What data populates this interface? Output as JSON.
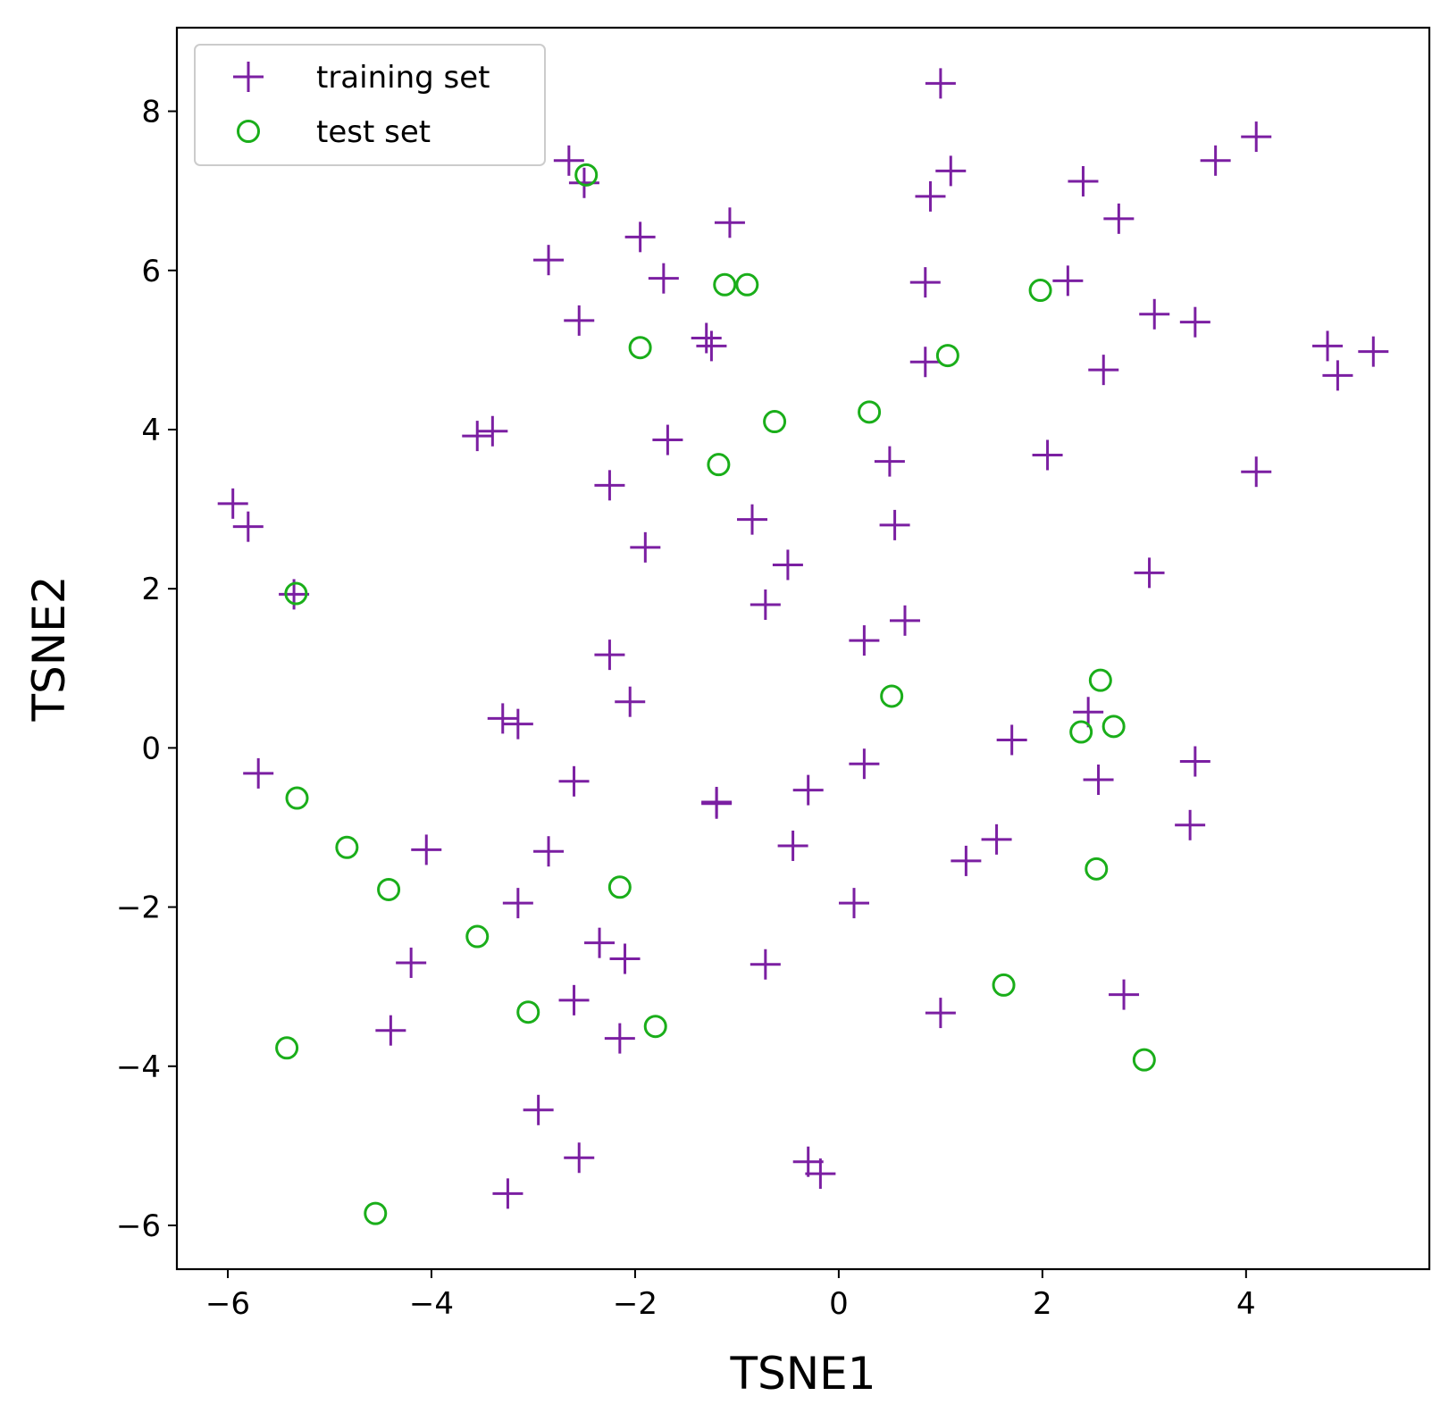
{
  "chart_data": {
    "type": "scatter",
    "xlabel": "TSNE1",
    "ylabel": "TSNE2",
    "xlim": [
      -6.5,
      5.8
    ],
    "ylim": [
      -6.55,
      9.05
    ],
    "xticks": [
      -6,
      -4,
      -2,
      0,
      2,
      4
    ],
    "yticks": [
      -6,
      -4,
      -2,
      0,
      2,
      4,
      6,
      8
    ],
    "xtick_labels": [
      "−6",
      "−4",
      "−2",
      "0",
      "2",
      "4"
    ],
    "ytick_labels": [
      "−6",
      "−4",
      "−2",
      "0",
      "2",
      "4",
      "6",
      "8"
    ],
    "grid": false,
    "legend_position": "top-left",
    "series": [
      {
        "name": "training set",
        "marker": "plus",
        "color": "#7B1FA2",
        "points": [
          [
            1.0,
            8.35
          ],
          [
            4.1,
            7.68
          ],
          [
            3.7,
            7.38
          ],
          [
            2.4,
            7.12
          ],
          [
            1.1,
            7.25
          ],
          [
            0.9,
            6.93
          ],
          [
            2.75,
            6.65
          ],
          [
            -2.65,
            7.38
          ],
          [
            -2.5,
            7.1
          ],
          [
            -1.95,
            6.42
          ],
          [
            -1.07,
            6.6
          ],
          [
            -2.85,
            6.13
          ],
          [
            -1.72,
            5.9
          ],
          [
            0.85,
            5.85
          ],
          [
            2.25,
            5.87
          ],
          [
            3.1,
            5.45
          ],
          [
            3.5,
            5.35
          ],
          [
            4.8,
            5.05
          ],
          [
            5.25,
            4.98
          ],
          [
            4.9,
            4.68
          ],
          [
            -2.55,
            5.37
          ],
          [
            -1.3,
            5.15
          ],
          [
            -1.25,
            5.05
          ],
          [
            0.85,
            4.85
          ],
          [
            2.6,
            4.75
          ],
          [
            -3.55,
            3.92
          ],
          [
            -3.4,
            3.98
          ],
          [
            -1.68,
            3.87
          ],
          [
            0.5,
            3.6
          ],
          [
            2.05,
            3.68
          ],
          [
            4.1,
            3.47
          ],
          [
            -2.25,
            3.3
          ],
          [
            -5.95,
            3.07
          ],
          [
            -5.8,
            2.78
          ],
          [
            -0.85,
            2.87
          ],
          [
            0.55,
            2.8
          ],
          [
            -1.9,
            2.52
          ],
          [
            -0.5,
            2.3
          ],
          [
            3.05,
            2.2
          ],
          [
            -5.35,
            1.93
          ],
          [
            -0.72,
            1.8
          ],
          [
            0.65,
            1.6
          ],
          [
            0.25,
            1.35
          ],
          [
            -2.25,
            1.17
          ],
          [
            -2.05,
            0.58
          ],
          [
            2.45,
            0.45
          ],
          [
            -3.3,
            0.37
          ],
          [
            -3.15,
            0.3
          ],
          [
            1.7,
            0.1
          ],
          [
            -5.7,
            -0.32
          ],
          [
            0.25,
            -0.2
          ],
          [
            3.5,
            -0.17
          ],
          [
            -2.6,
            -0.42
          ],
          [
            2.55,
            -0.4
          ],
          [
            -0.3,
            -0.53
          ],
          [
            -1.2,
            -0.7
          ],
          [
            -1.2,
            -0.68
          ],
          [
            3.45,
            -0.97
          ],
          [
            1.55,
            -1.15
          ],
          [
            -0.45,
            -1.23
          ],
          [
            -4.05,
            -1.28
          ],
          [
            -2.85,
            -1.3
          ],
          [
            1.25,
            -1.42
          ],
          [
            -3.15,
            -1.95
          ],
          [
            0.15,
            -1.95
          ],
          [
            -2.35,
            -2.45
          ],
          [
            -4.2,
            -2.7
          ],
          [
            -2.1,
            -2.65
          ],
          [
            -0.72,
            -2.72
          ],
          [
            2.8,
            -3.1
          ],
          [
            -2.6,
            -3.17
          ],
          [
            1.0,
            -3.33
          ],
          [
            -4.4,
            -3.55
          ],
          [
            -2.15,
            -3.65
          ],
          [
            -2.95,
            -4.55
          ],
          [
            -2.55,
            -5.15
          ],
          [
            -0.3,
            -5.2
          ],
          [
            -0.18,
            -5.35
          ],
          [
            -3.25,
            -5.6
          ]
        ]
      },
      {
        "name": "test set",
        "marker": "circle",
        "color": "#1AAE1A",
        "points": [
          [
            -2.48,
            7.2
          ],
          [
            -1.12,
            5.82
          ],
          [
            -0.9,
            5.82
          ],
          [
            1.98,
            5.75
          ],
          [
            -1.95,
            5.03
          ],
          [
            1.07,
            4.93
          ],
          [
            0.3,
            4.22
          ],
          [
            -0.63,
            4.1
          ],
          [
            -1.18,
            3.56
          ],
          [
            -5.33,
            1.94
          ],
          [
            2.57,
            0.85
          ],
          [
            0.52,
            0.65
          ],
          [
            2.7,
            0.27
          ],
          [
            2.38,
            0.2
          ],
          [
            -5.32,
            -0.63
          ],
          [
            -4.83,
            -1.25
          ],
          [
            2.53,
            -1.52
          ],
          [
            -4.42,
            -1.78
          ],
          [
            -2.15,
            -1.75
          ],
          [
            -3.55,
            -2.37
          ],
          [
            1.62,
            -2.98
          ],
          [
            -3.05,
            -3.32
          ],
          [
            -1.8,
            -3.5
          ],
          [
            -5.42,
            -3.77
          ],
          [
            3.0,
            -3.92
          ],
          [
            -4.55,
            -5.85
          ]
        ]
      }
    ]
  }
}
